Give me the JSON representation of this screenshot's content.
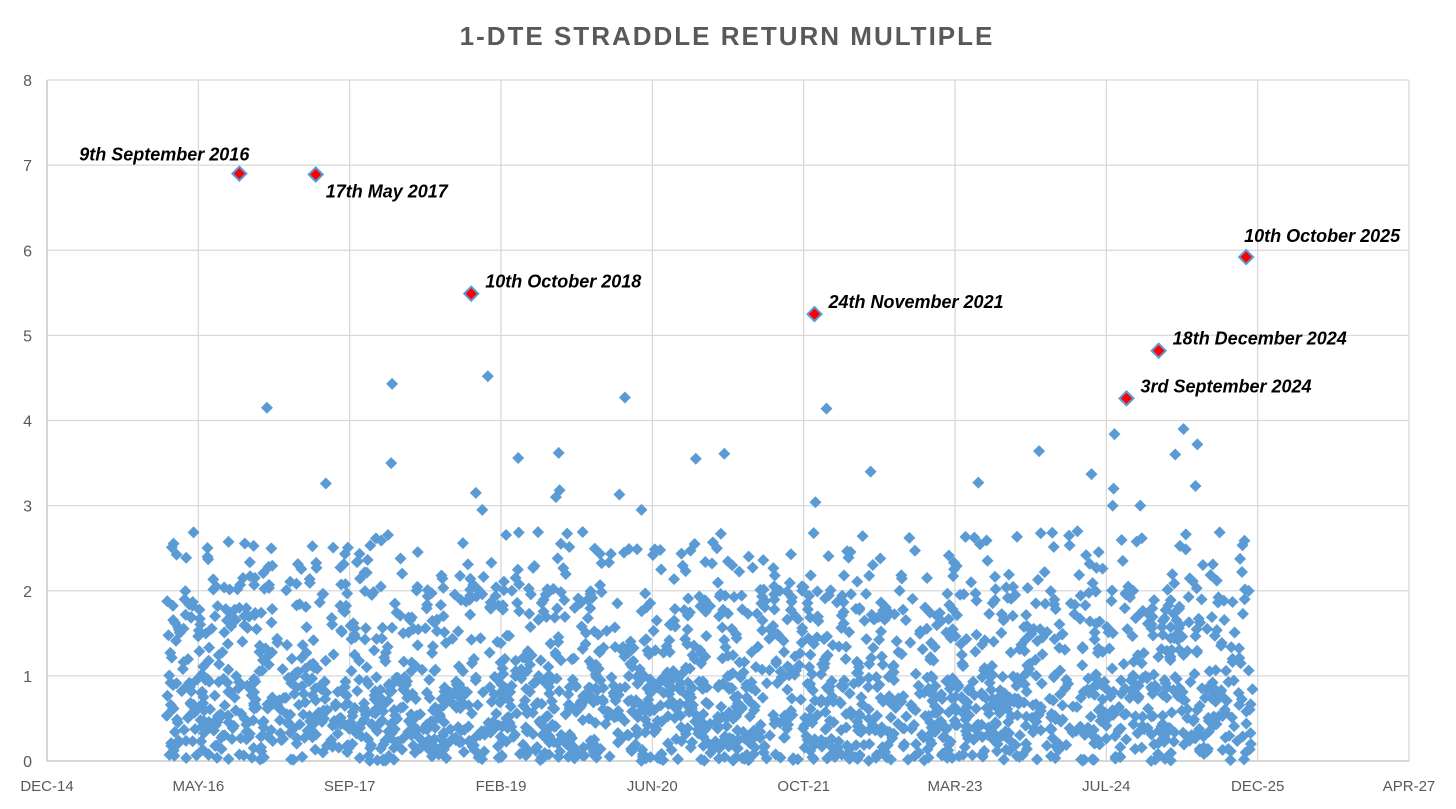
{
  "chart_data": {
    "type": "scatter",
    "title": "1-DTE STRADDLE RETURN MULTIPLE",
    "xlabel": "",
    "ylabel": "",
    "ylim": [
      0,
      8
    ],
    "yticks": [
      0,
      1,
      2,
      3,
      4,
      5,
      6,
      7,
      8
    ],
    "xlim_months": [
      0,
      148
    ],
    "xtick_labels": [
      "DEC-14",
      "MAY-16",
      "SEP-17",
      "FEB-19",
      "JUN-20",
      "OCT-21",
      "MAR-23",
      "JUL-24",
      "DEC-25",
      "APR-27"
    ],
    "x_unit": "months since Dec 2014",
    "grid": true,
    "colors": {
      "point": "#5B9BD5",
      "highlight_fill": "#FF0000",
      "highlight_edge": "#5B9BD5"
    },
    "highlighted_points": [
      {
        "label": "9th September 2016",
        "x": 20.9,
        "y": 6.9,
        "label_side": "above-left"
      },
      {
        "label": "17th May 2017",
        "x": 29.2,
        "y": 6.89,
        "label_side": "below-right"
      },
      {
        "label": "10th October 2018",
        "x": 46.1,
        "y": 5.49,
        "label_side": "right"
      },
      {
        "label": "24th November 2021",
        "x": 83.4,
        "y": 5.25,
        "label_side": "right"
      },
      {
        "label": "3rd September 2024",
        "x": 117.3,
        "y": 4.26,
        "label_side": "right"
      },
      {
        "label": "18th December 2024",
        "x": 120.8,
        "y": 4.82,
        "label_side": "right"
      },
      {
        "label": "10th October 2025",
        "x": 130.3,
        "y": 5.92,
        "label_side": "above"
      }
    ],
    "notable_points": [
      {
        "x": 23.9,
        "y": 4.15
      },
      {
        "x": 30.3,
        "y": 3.26
      },
      {
        "x": 37.5,
        "y": 4.43
      },
      {
        "x": 37.4,
        "y": 3.5
      },
      {
        "x": 47.9,
        "y": 4.52
      },
      {
        "x": 46.6,
        "y": 3.15
      },
      {
        "x": 47.3,
        "y": 2.95
      },
      {
        "x": 51.2,
        "y": 3.56
      },
      {
        "x": 55.6,
        "y": 3.62
      },
      {
        "x": 55.7,
        "y": 3.18
      },
      {
        "x": 55.3,
        "y": 3.1
      },
      {
        "x": 62.8,
        "y": 4.27
      },
      {
        "x": 62.2,
        "y": 3.13
      },
      {
        "x": 64.6,
        "y": 2.95
      },
      {
        "x": 70.5,
        "y": 3.55
      },
      {
        "x": 73.6,
        "y": 3.61
      },
      {
        "x": 84.7,
        "y": 4.14
      },
      {
        "x": 83.5,
        "y": 3.04
      },
      {
        "x": 89.5,
        "y": 3.4
      },
      {
        "x": 101.2,
        "y": 3.27
      },
      {
        "x": 107.8,
        "y": 3.64
      },
      {
        "x": 113.5,
        "y": 3.37
      },
      {
        "x": 116.0,
        "y": 3.84
      },
      {
        "x": 115.9,
        "y": 3.2
      },
      {
        "x": 115.8,
        "y": 3.0
      },
      {
        "x": 123.5,
        "y": 3.9
      },
      {
        "x": 125.0,
        "y": 3.72
      },
      {
        "x": 122.6,
        "y": 3.6
      },
      {
        "x": 124.8,
        "y": 3.23
      },
      {
        "x": 118.8,
        "y": 3.0
      }
    ],
    "bulk_points": {
      "x_range_months": [
        13,
        131
      ],
      "typical_y_range": [
        0,
        2.7
      ],
      "approx_count": 2300,
      "description": "Dense cloud of daily observations, most values between 0 and 2"
    }
  }
}
